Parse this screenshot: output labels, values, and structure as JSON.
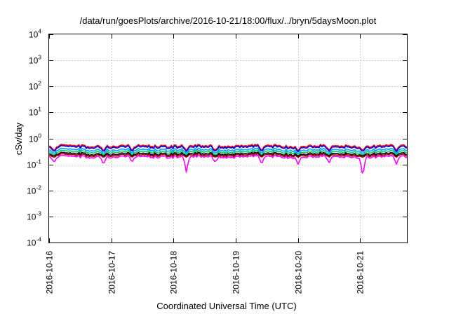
{
  "chart_data": {
    "type": "line",
    "title": "/data/run/goesPlots/archive/2016-10-21/18:00/flux/../bryn/5daysMoon.plot",
    "xlabel": "Coordinated Universal Time (UTC)",
    "ylabel": "cSv/day",
    "yscale": "log",
    "ylim": [
      0.0001,
      10000
    ],
    "y_ticks": [
      {
        "base": "10",
        "exp": "-4",
        "value": 0.0001
      },
      {
        "base": "10",
        "exp": "-3",
        "value": 0.001
      },
      {
        "base": "10",
        "exp": "-2",
        "value": 0.01
      },
      {
        "base": "10",
        "exp": "-1",
        "value": 0.1
      },
      {
        "base": "10",
        "exp": "0",
        "value": 1
      },
      {
        "base": "10",
        "exp": "1",
        "value": 10
      },
      {
        "base": "10",
        "exp": "2",
        "value": 100
      },
      {
        "base": "10",
        "exp": "3",
        "value": 1000
      },
      {
        "base": "10",
        "exp": "4",
        "value": 10000
      }
    ],
    "xlim": [
      "2016-10-16 00:00",
      "2016-10-21 18:00"
    ],
    "x_ticks": [
      "2016-10-16",
      "2016-10-17",
      "2016-10-18",
      "2016-10-19",
      "2016-10-20",
      "2016-10-21"
    ],
    "grid": true,
    "series": [
      {
        "color": "#ff0000",
        "baseline": 0.52,
        "dip_scale": 0.65
      },
      {
        "color": "#0000ee",
        "baseline": 0.47,
        "dip_scale": 0.65
      },
      {
        "color": "#00a0ff",
        "baseline": 0.37,
        "dip_scale": 0.7
      },
      {
        "color": "#00c870",
        "baseline": 0.31,
        "dip_scale": 0.72
      },
      {
        "color": "#000000",
        "baseline": 0.26,
        "dip_scale": 0.8
      },
      {
        "color": "#a00000",
        "baseline": 0.23,
        "dip_scale": 0.82
      },
      {
        "color": "#ff00ff",
        "baseline": 0.2,
        "dip_scale": 0.5
      }
    ],
    "magenta_dips": [
      {
        "date": "2016-10-16 02:00",
        "value": 0.12
      },
      {
        "date": "2016-10-16 21:00",
        "value": 0.1
      },
      {
        "date": "2016-10-17 08:00",
        "value": 0.12
      },
      {
        "date": "2016-10-18 05:00",
        "value": 0.04
      },
      {
        "date": "2016-10-18 16:00",
        "value": 0.12
      },
      {
        "date": "2016-10-19 10:00",
        "value": 0.1
      },
      {
        "date": "2016-10-20 00:00",
        "value": 0.1
      },
      {
        "date": "2016-10-20 12:00",
        "value": 0.11
      },
      {
        "date": "2016-10-21 01:00",
        "value": 0.02
      },
      {
        "date": "2016-10-21 14:00",
        "value": 0.1
      }
    ]
  }
}
